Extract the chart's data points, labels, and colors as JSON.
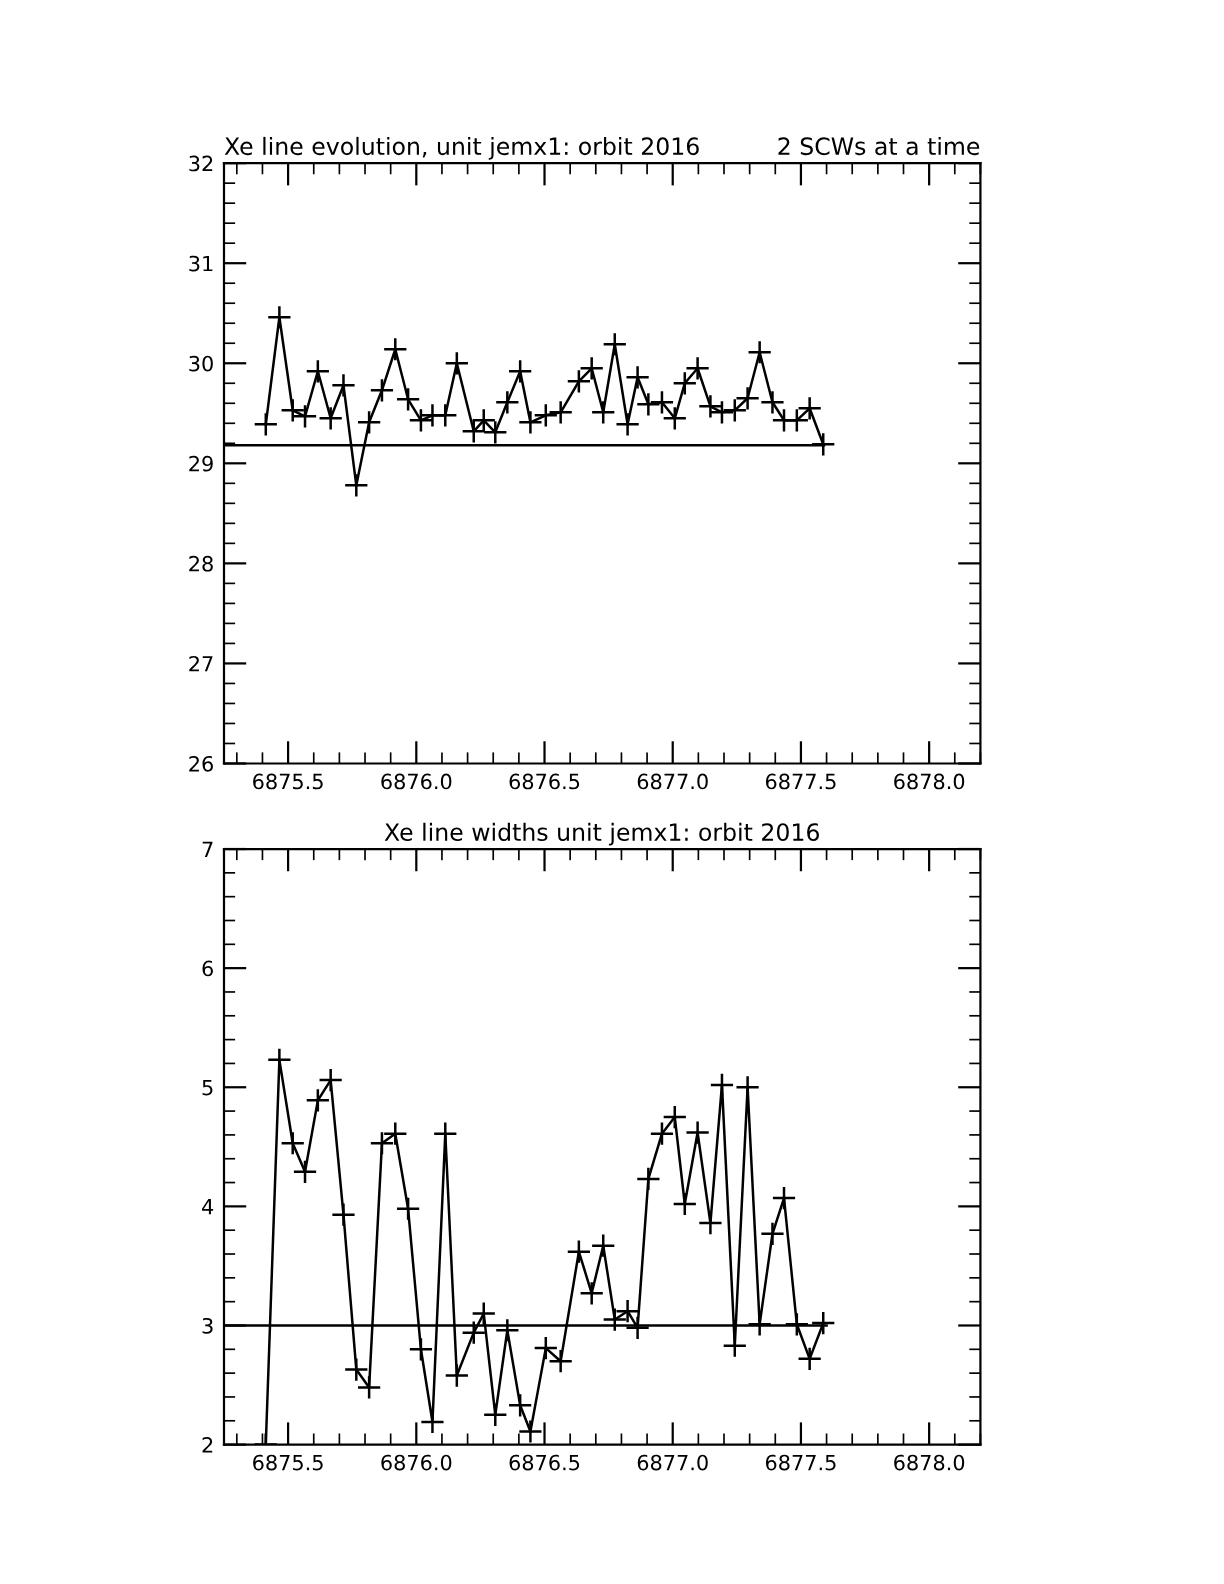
{
  "chart_data": [
    {
      "type": "line",
      "title": "Xe line evolution, unit jemx1: orbit 2016",
      "subtitle": "2 SCWs at a time",
      "marker": "cross",
      "line_style": "solid",
      "grid": false,
      "legend": false,
      "xlim": [
        6875.25,
        6878.2
      ],
      "xticks": [
        6875.5,
        {
          "value": 6876,
          "label": "6876.0"
        },
        6876.5,
        {
          "value": 6877,
          "label": "6877.0"
        },
        6877.5,
        {
          "value": 6878,
          "label": "6878.0"
        }
      ],
      "ylim": [
        26,
        32
      ],
      "yticks": [
        26,
        27,
        28,
        29,
        30,
        31,
        32
      ],
      "series": [
        {
          "color": "#000000",
          "x": [
            6875.413,
            6875.466,
            6875.518,
            6875.566,
            6875.616,
            6875.666,
            6875.716,
            6875.766,
            6875.816,
            6875.866,
            6875.918,
            6875.968,
            6876.018,
            6876.063,
            6876.113,
            6876.158,
            6876.224,
            6876.263,
            6876.308,
            6876.355,
            6876.405,
            6876.445,
            6876.505,
            6876.563,
            6876.634,
            6876.684,
            6876.729,
            6876.774,
            6876.824,
            6876.863,
            6876.905,
            6876.958,
            6877.008,
            6877.047,
            6877.097,
            6877.147,
            6877.192,
            6877.242,
            6877.292,
            6877.339,
            6877.389,
            6877.434,
            6877.484,
            6877.534,
            6877.587
          ],
          "values": [
            29.39,
            30.46,
            29.53,
            29.47,
            29.92,
            29.45,
            29.78,
            28.78,
            29.41,
            29.73,
            30.14,
            29.64,
            29.43,
            29.48,
            29.48,
            30.0,
            29.32,
            29.43,
            29.31,
            29.61,
            29.92,
            29.41,
            29.48,
            29.51,
            29.82,
            29.95,
            29.51,
            30.19,
            29.39,
            29.86,
            29.59,
            29.61,
            29.45,
            29.8,
            29.95,
            29.57,
            29.51,
            29.53,
            29.65,
            30.11,
            29.61,
            29.43,
            29.43,
            29.55,
            29.19
          ]
        },
        {
          "color": "#000000",
          "marker": "none",
          "x": [
            6875.25,
            6877.59
          ],
          "values": [
            29.18,
            29.18
          ]
        }
      ]
    },
    {
      "type": "line",
      "title": "Xe line widths unit jemx1: orbit 2016",
      "marker": "cross",
      "line_style": "solid",
      "grid": false,
      "legend": false,
      "xlim": [
        6875.25,
        6878.2
      ],
      "xticks": [
        6875.5,
        {
          "value": 6876,
          "label": "6876.0"
        },
        6876.5,
        {
          "value": 6877,
          "label": "6877.0"
        },
        6877.5,
        {
          "value": 6878,
          "label": "6878.0"
        }
      ],
      "ylim": [
        2,
        7
      ],
      "yticks": [
        2,
        3,
        4,
        5,
        6,
        7
      ],
      "series": [
        {
          "color": "#000000",
          "x": [
            6875.413,
            6875.466,
            6875.518,
            6875.566,
            6875.616,
            6875.666,
            6875.716,
            6875.766,
            6875.816,
            6875.866,
            6875.918,
            6875.968,
            6876.018,
            6876.063,
            6876.113,
            6876.158,
            6876.224,
            6876.263,
            6876.308,
            6876.355,
            6876.405,
            6876.445,
            6876.505,
            6876.563,
            6876.634,
            6876.684,
            6876.729,
            6876.774,
            6876.824,
            6876.863,
            6876.905,
            6876.958,
            6877.008,
            6877.047,
            6877.097,
            6877.147,
            6877.192,
            6877.242,
            6877.292,
            6877.339,
            6877.389,
            6877.434,
            6877.484,
            6877.534,
            6877.587
          ],
          "values": [
            2.0,
            5.23,
            4.53,
            4.29,
            4.89,
            5.06,
            3.93,
            2.63,
            2.48,
            4.53,
            4.61,
            3.98,
            2.8,
            2.19,
            4.61,
            2.58,
            2.94,
            3.1,
            2.25,
            2.96,
            2.33,
            2.11,
            2.81,
            2.7,
            3.62,
            3.27,
            3.67,
            3.05,
            3.12,
            2.98,
            4.23,
            4.61,
            4.75,
            4.02,
            4.62,
            3.86,
            5.02,
            2.83,
            5.0,
            3.01,
            3.77,
            4.07,
            3.01,
            2.72,
            3.02
          ]
        },
        {
          "color": "#000000",
          "marker": "none",
          "x": [
            6875.25,
            6877.6
          ],
          "values": [
            3.0,
            3.0
          ]
        }
      ]
    }
  ]
}
